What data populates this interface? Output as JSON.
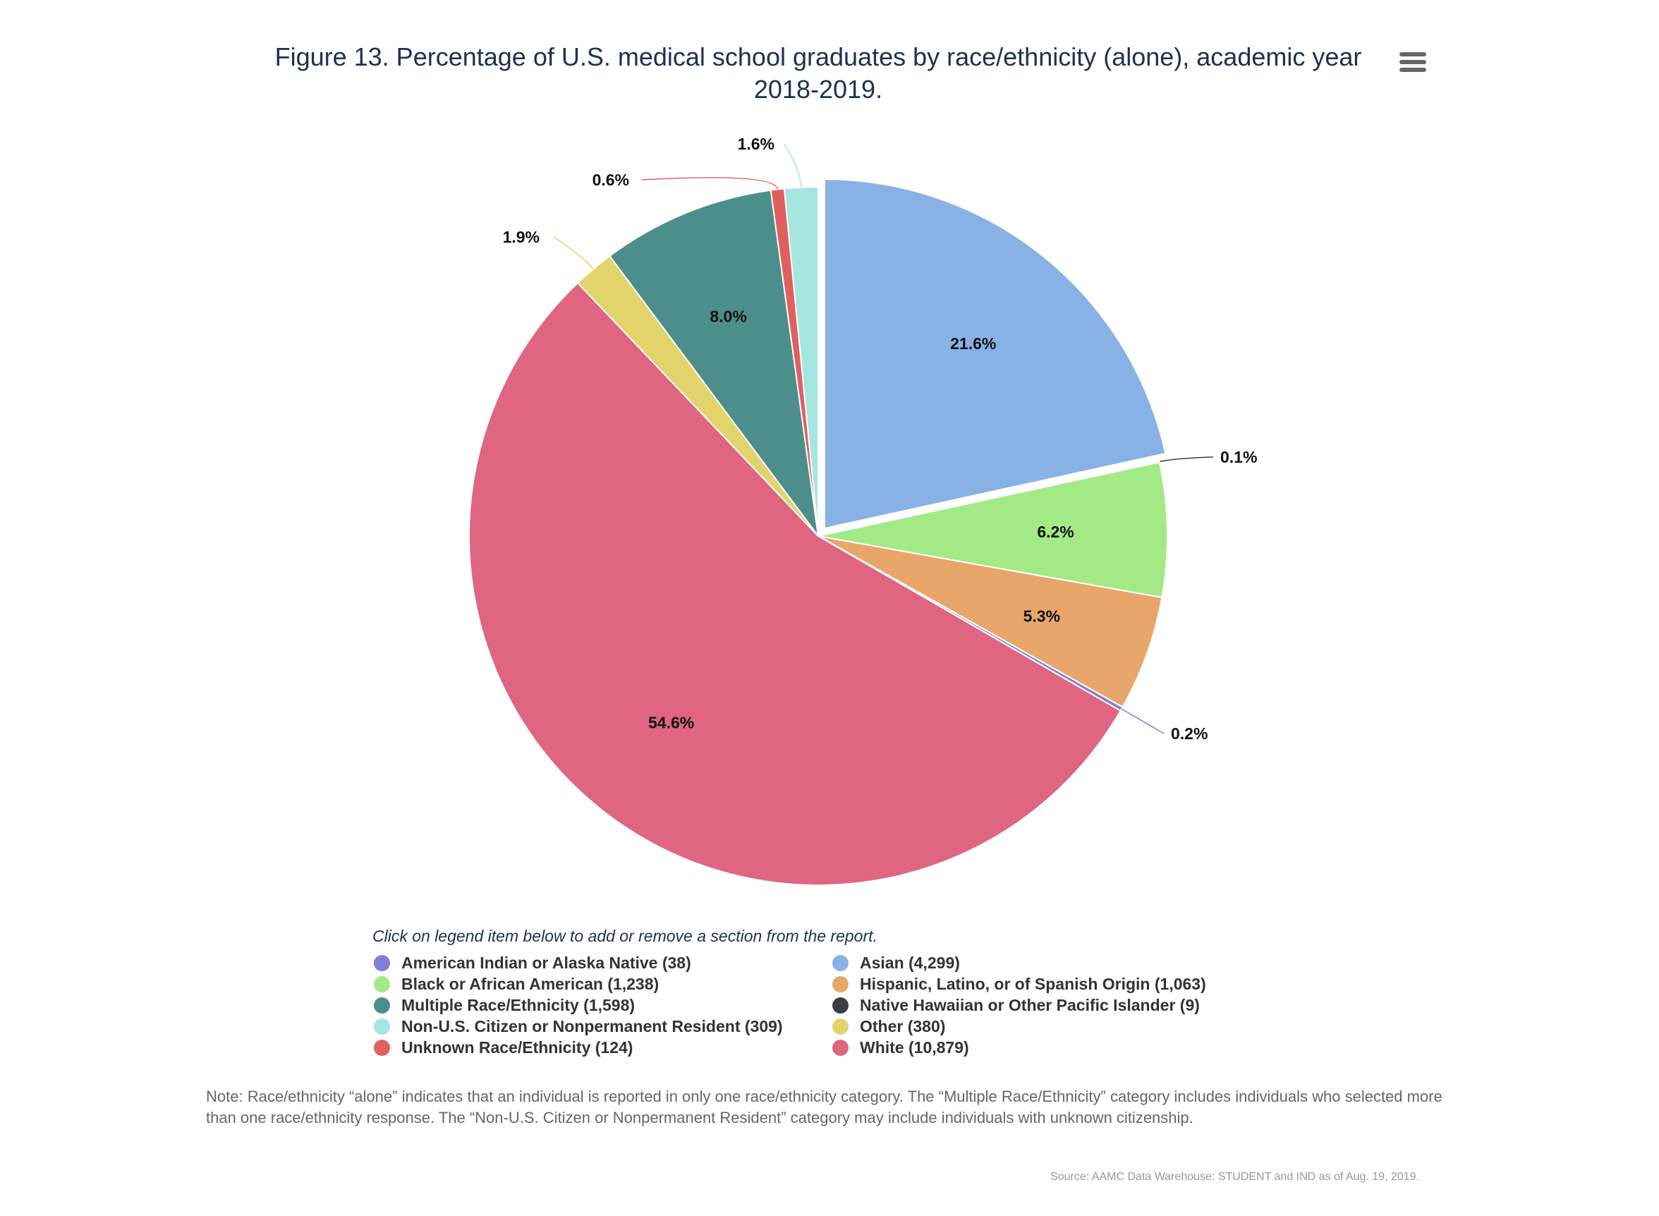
{
  "title": "Figure 13. Percentage of U.S. medical school graduates by race/ethnicity (alone), academic year 2018-2019.",
  "menu_icon": "hamburger-menu-icon",
  "legend_instruction": "Click on legend item below to add or remove a section from the report.",
  "note": "Note: Race/ethnicity “alone” indicates that an individual is reported in only one race/ethnicity category. The “Multiple Race/Ethnicity” category includes individuals who selected more than one race/ethnicity response. The “Non-U.S. Citizen or Nonpermanent Resident” category may include individuals with unknown citizenship.",
  "source": "Source: AAMC Data Warehouse: STUDENT and IND as of Aug. 19, 2019.",
  "chart_data": {
    "type": "pie",
    "start_angle_deg": 0,
    "direction": "clockwise",
    "slices": [
      {
        "name": "Asian",
        "count": 4299,
        "percent": 21.6,
        "label": "21.6%",
        "legend": "Asian (4,299)",
        "color": "#88b2e6",
        "exploded": true,
        "label_outside": false
      },
      {
        "name": "Native Hawaiian or Other Pacific Islander",
        "count": 9,
        "percent": 0.1,
        "label": "0.1%",
        "legend": "Native Hawaiian or Other Pacific Islander (9)",
        "color": "#3d3d46",
        "exploded": false,
        "label_outside": true
      },
      {
        "name": "Black or African American",
        "count": 1238,
        "percent": 6.2,
        "label": "6.2%",
        "legend": "Black or African American (1,238)",
        "color": "#a3ea86",
        "exploded": false,
        "label_outside": false
      },
      {
        "name": "Hispanic, Latino, or of Spanish Origin",
        "count": 1063,
        "percent": 5.3,
        "label": "5.3%",
        "legend": "Hispanic, Latino, or of Spanish Origin (1,063)",
        "color": "#e8a66b",
        "exploded": false,
        "label_outside": false
      },
      {
        "name": "American Indian or Alaska Native",
        "count": 38,
        "percent": 0.2,
        "label": "0.2%",
        "legend": "American Indian or Alaska Native (38)",
        "color": "#7f7fd8",
        "exploded": false,
        "label_outside": true
      },
      {
        "name": "White",
        "count": 10879,
        "percent": 54.6,
        "label": "54.6%",
        "legend": "White (10,879)",
        "color": "#df6580",
        "exploded": false,
        "label_outside": false
      },
      {
        "name": "Other",
        "count": 380,
        "percent": 1.9,
        "label": "1.9%",
        "legend": "Other (380)",
        "color": "#e2d46b",
        "exploded": false,
        "label_outside": true
      },
      {
        "name": "Multiple Race/Ethnicity",
        "count": 1598,
        "percent": 8.0,
        "label": "8.0%",
        "legend": "Multiple Race/Ethnicity (1,598)",
        "color": "#4c8e8c",
        "exploded": false,
        "label_outside": false
      },
      {
        "name": "Unknown Race/Ethnicity",
        "count": 124,
        "percent": 0.6,
        "label": "0.6%",
        "legend": "Unknown Race/Ethnicity (124)",
        "color": "#e06060",
        "exploded": false,
        "label_outside": true
      },
      {
        "name": "Non-U.S. Citizen or Nonpermanent Resident",
        "count": 309,
        "percent": 1.6,
        "label": "1.6%",
        "legend": "Non-U.S. Citizen or Nonpermanent Resident (309)",
        "color": "#a6e6e0",
        "exploded": false,
        "label_outside": true
      }
    ],
    "legend_order": [
      "American Indian or Alaska Native",
      "Asian",
      "Black or African American",
      "Hispanic, Latino, or of Spanish Origin",
      "Multiple Race/Ethnicity",
      "Native Hawaiian or Other Pacific Islander",
      "Non-U.S. Citizen or Nonpermanent Resident",
      "Other",
      "Unknown Race/Ethnicity",
      "White"
    ],
    "legend_placement": "bottom"
  }
}
